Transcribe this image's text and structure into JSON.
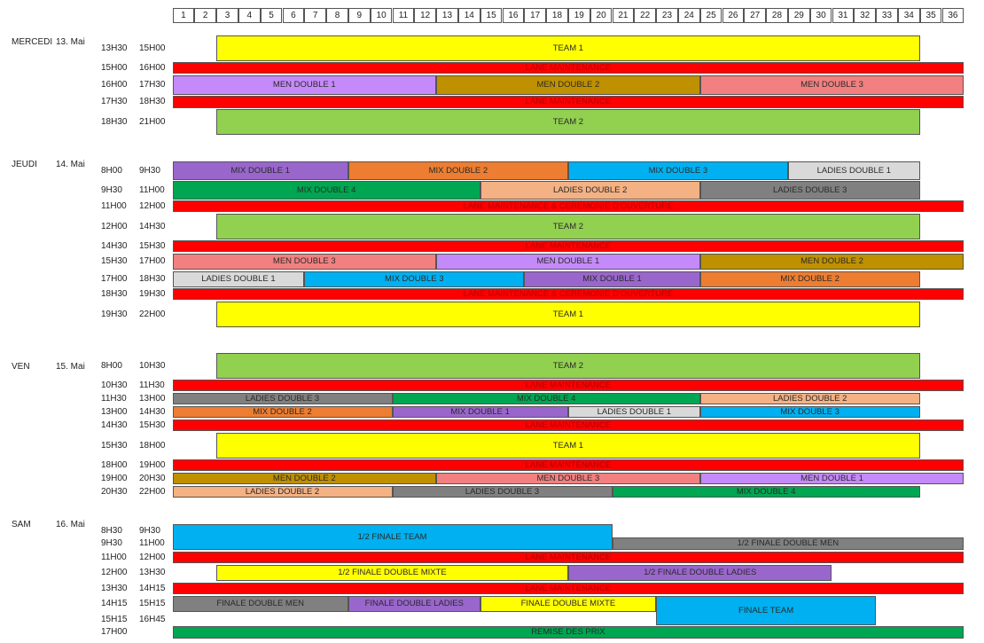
{
  "columns": [
    "1",
    "2",
    "3",
    "4",
    "5",
    "6",
    "7",
    "8",
    "9",
    "10",
    "11",
    "12",
    "13",
    "14",
    "15",
    "16",
    "17",
    "18",
    "19",
    "20",
    "21",
    "22",
    "23",
    "24",
    "25",
    "26",
    "27",
    "28",
    "29",
    "30",
    "31",
    "32",
    "33",
    "34",
    "35",
    "36"
  ],
  "days": [
    {
      "name": "MERCEDI",
      "date": "13. Mai",
      "rows": [
        {
          "start": "13H30",
          "end": "15H00",
          "items": [
            {
              "label": "TEAM 1",
              "from": 3,
              "to": 34,
              "color": "#ffff00"
            }
          ]
        },
        {
          "start": "15H00",
          "end": "16H00",
          "items": [
            {
              "label": "LANE MAINTENANCE",
              "from": 1,
              "to": 36,
              "color": "#ff0000",
              "maint": true
            }
          ]
        },
        {
          "start": "16H00",
          "end": "17H30",
          "items": [
            {
              "label": "MEN DOUBLE 1",
              "from": 1,
              "to": 12,
              "color": "#c58af9"
            },
            {
              "label": "MEN DOUBLE 2",
              "from": 13,
              "to": 24,
              "color": "#bf9000"
            },
            {
              "label": "MEN DOUBLE 3",
              "from": 25,
              "to": 36,
              "color": "#f28080"
            }
          ]
        },
        {
          "start": "17H30",
          "end": "18H30",
          "items": [
            {
              "label": "LANE MAINTENANCE",
              "from": 1,
              "to": 36,
              "color": "#ff0000",
              "maint": true
            }
          ]
        },
        {
          "start": "18H30",
          "end": "21H00",
          "items": [
            {
              "label": "TEAM 2",
              "from": 3,
              "to": 34,
              "color": "#92d050"
            }
          ]
        }
      ]
    },
    {
      "name": "JEUDI",
      "date": "14. Mai",
      "rows": [
        {
          "start": "8H00",
          "end": "9H30",
          "items": [
            {
              "label": "MIX DOUBLE 1",
              "from": 1,
              "to": 8,
              "color": "#9966cc"
            },
            {
              "label": "MIX DOUBLE 2",
              "from": 9,
              "to": 18,
              "color": "#ed7d31"
            },
            {
              "label": "MIX DOUBLE 3",
              "from": 19,
              "to": 28,
              "color": "#00b0f0"
            },
            {
              "label": "LADIES DOUBLE 1",
              "from": 29,
              "to": 34,
              "color": "#d9d9d9"
            }
          ]
        },
        {
          "start": "9H30",
          "end": "11H00",
          "items": [
            {
              "label": "MIX DOUBLE 4",
              "from": 1,
              "to": 14,
              "color": "#00a651"
            },
            {
              "label": "LADIES DOUBLE 2",
              "from": 15,
              "to": 24,
              "color": "#f4b183"
            },
            {
              "label": "LADIES DOUBLE 3",
              "from": 25,
              "to": 34,
              "color": "#808080"
            }
          ]
        },
        {
          "start": "11H00",
          "end": "12H00",
          "items": [
            {
              "label": "LANE MAINTENANCE & CEREMONIE D'OUVERTURE",
              "from": 1,
              "to": 36,
              "color": "#ff0000",
              "maint": true
            }
          ]
        },
        {
          "start": "12H00",
          "end": "14H30",
          "items": [
            {
              "label": "TEAM 2",
              "from": 3,
              "to": 34,
              "color": "#92d050"
            }
          ]
        },
        {
          "start": "14H30",
          "end": "15H30",
          "items": [
            {
              "label": "LANE MAINTENANCE",
              "from": 1,
              "to": 36,
              "color": "#ff0000",
              "maint": true
            }
          ]
        },
        {
          "start": "15H30",
          "end": "17H00",
          "items": [
            {
              "label": "MEN DOUBLE 3",
              "from": 1,
              "to": 12,
              "color": "#f28080"
            },
            {
              "label": "MEN DOUBLE 1",
              "from": 13,
              "to": 24,
              "color": "#c58af9"
            },
            {
              "label": "MEN DOUBLE 2",
              "from": 25,
              "to": 36,
              "color": "#bf9000"
            }
          ]
        },
        {
          "start": "17H00",
          "end": "18H30",
          "items": [
            {
              "label": "LADIES DOUBLE 1",
              "from": 1,
              "to": 6,
              "color": "#d9d9d9"
            },
            {
              "label": "MIX DOUBLE 3",
              "from": 7,
              "to": 16,
              "color": "#00b0f0"
            },
            {
              "label": "MIX DOUBLE 1",
              "from": 17,
              "to": 24,
              "color": "#9966cc"
            },
            {
              "label": "MIX DOUBLE 2",
              "from": 25,
              "to": 34,
              "color": "#ed7d31"
            }
          ]
        },
        {
          "start": "18H30",
          "end": "19H30",
          "items": [
            {
              "label": "LANE MAINTENANCE & CEREMONIE D'OUVERTURE",
              "from": 1,
              "to": 36,
              "color": "#ff0000",
              "maint": true
            }
          ]
        },
        {
          "start": "19H30",
          "end": "22H00",
          "items": [
            {
              "label": "TEAM 1",
              "from": 3,
              "to": 34,
              "color": "#ffff00"
            }
          ]
        }
      ]
    },
    {
      "name": "VEN",
      "date": "15. Mai",
      "rows": [
        {
          "start": "8H00",
          "end": "10H30",
          "items": [
            {
              "label": "TEAM 2",
              "from": 3,
              "to": 34,
              "color": "#92d050"
            }
          ]
        },
        {
          "start": "10H30",
          "end": "11H30",
          "items": [
            {
              "label": "LANE MAINTENANCE",
              "from": 1,
              "to": 36,
              "color": "#ff0000",
              "maint": true
            }
          ]
        },
        {
          "start": "11H30",
          "end": "13H00",
          "items": [
            {
              "label": "LADIES DOUBLE 3",
              "from": 1,
              "to": 10,
              "color": "#808080"
            },
            {
              "label": "MIX DOUBLE 4",
              "from": 11,
              "to": 24,
              "color": "#00a651"
            },
            {
              "label": "LADIES DOUBLE 2",
              "from": 25,
              "to": 34,
              "color": "#f4b183"
            }
          ]
        },
        {
          "start": "13H00",
          "end": "14H30",
          "items": [
            {
              "label": "MIX DOUBLE 2",
              "from": 1,
              "to": 10,
              "color": "#ed7d31"
            },
            {
              "label": "MIX DOUBLE 1",
              "from": 11,
              "to": 18,
              "color": "#9966cc"
            },
            {
              "label": "LADIES DOUBLE 1",
              "from": 19,
              "to": 24,
              "color": "#d9d9d9"
            },
            {
              "label": "MIX DOUBLE 3",
              "from": 25,
              "to": 34,
              "color": "#00b0f0"
            }
          ]
        },
        {
          "start": "14H30",
          "end": "15H30",
          "items": [
            {
              "label": "LANE MAINTENANCE",
              "from": 1,
              "to": 36,
              "color": "#ff0000",
              "maint": true
            }
          ]
        },
        {
          "start": "15H30",
          "end": "18H00",
          "items": [
            {
              "label": "TEAM 1",
              "from": 3,
              "to": 34,
              "color": "#ffff00"
            }
          ]
        },
        {
          "start": "18H00",
          "end": "19H00",
          "items": [
            {
              "label": "LANE MAINTENANCE",
              "from": 1,
              "to": 36,
              "color": "#ff0000",
              "maint": true
            }
          ]
        },
        {
          "start": "19H00",
          "end": "20H30",
          "items": [
            {
              "label": "MEN DOUBLE 2",
              "from": 1,
              "to": 12,
              "color": "#bf9000"
            },
            {
              "label": "MEN DOUBLE 3",
              "from": 13,
              "to": 24,
              "color": "#f28080"
            },
            {
              "label": "MEN DOUBLE 1",
              "from": 25,
              "to": 36,
              "color": "#c58af9"
            }
          ]
        },
        {
          "start": "20H30",
          "end": "22H00",
          "items": [
            {
              "label": "LADIES DOUBLE 2",
              "from": 1,
              "to": 10,
              "color": "#f4b183"
            },
            {
              "label": "LADIES DOUBLE 3",
              "from": 11,
              "to": 20,
              "color": "#808080"
            },
            {
              "label": "MIX DOUBLE 4",
              "from": 21,
              "to": 34,
              "color": "#00a651"
            }
          ]
        }
      ]
    },
    {
      "name": "SAM",
      "date": "16. Mai",
      "rows": [
        {
          "start": "8H30",
          "end": "9H30",
          "items": [
            {
              "label": "1/2 FINALE TEAM",
              "from": 1,
              "to": 20,
              "color": "#00b0f0"
            }
          ]
        },
        {
          "start": "9H30",
          "end": "11H00",
          "items": [
            {
              "label": "1/2 FINALE DOUBLE MEN",
              "from": 21,
              "to": 36,
              "color": "#808080"
            }
          ]
        },
        {
          "start": "11H00",
          "end": "12H00",
          "items": [
            {
              "label": "LANE MAINTENANCE",
              "from": 1,
              "to": 36,
              "color": "#ff0000",
              "maint": true
            }
          ]
        },
        {
          "start": "12H00",
          "end": "13H30",
          "items": [
            {
              "label": "1/2 FINALE DOUBLE MIXTE",
              "from": 3,
              "to": 18,
              "color": "#ffff00"
            },
            {
              "label": "1/2 FINALE DOUBLE LADIES",
              "from": 19,
              "to": 30,
              "color": "#9966cc"
            }
          ]
        },
        {
          "start": "13H30",
          "end": "14H15",
          "items": [
            {
              "label": "LANE MAINTENANCE",
              "from": 1,
              "to": 36,
              "color": "#ff0000",
              "maint": true
            }
          ]
        },
        {
          "start": "14H15",
          "end": "15H15",
          "items": [
            {
              "label": "FINALE DOUBLE MEN",
              "from": 1,
              "to": 8,
              "color": "#808080"
            },
            {
              "label": "FINALE DOUBLE LADIES",
              "from": 9,
              "to": 14,
              "color": "#9966cc"
            },
            {
              "label": "FINALE DOUBLE MIXTE",
              "from": 15,
              "to": 22,
              "color": "#ffff00"
            },
            {
              "label": "FINALE TEAM",
              "from": 23,
              "to": 32,
              "color": "#00b0f0"
            }
          ]
        },
        {
          "start": "15H15",
          "end": "16H45",
          "items": []
        },
        {
          "start": "17H00",
          "end": "",
          "items": [
            {
              "label": "REMISE DES PRIX",
              "from": 1,
              "to": 36,
              "color": "#00a651"
            }
          ]
        }
      ]
    }
  ]
}
